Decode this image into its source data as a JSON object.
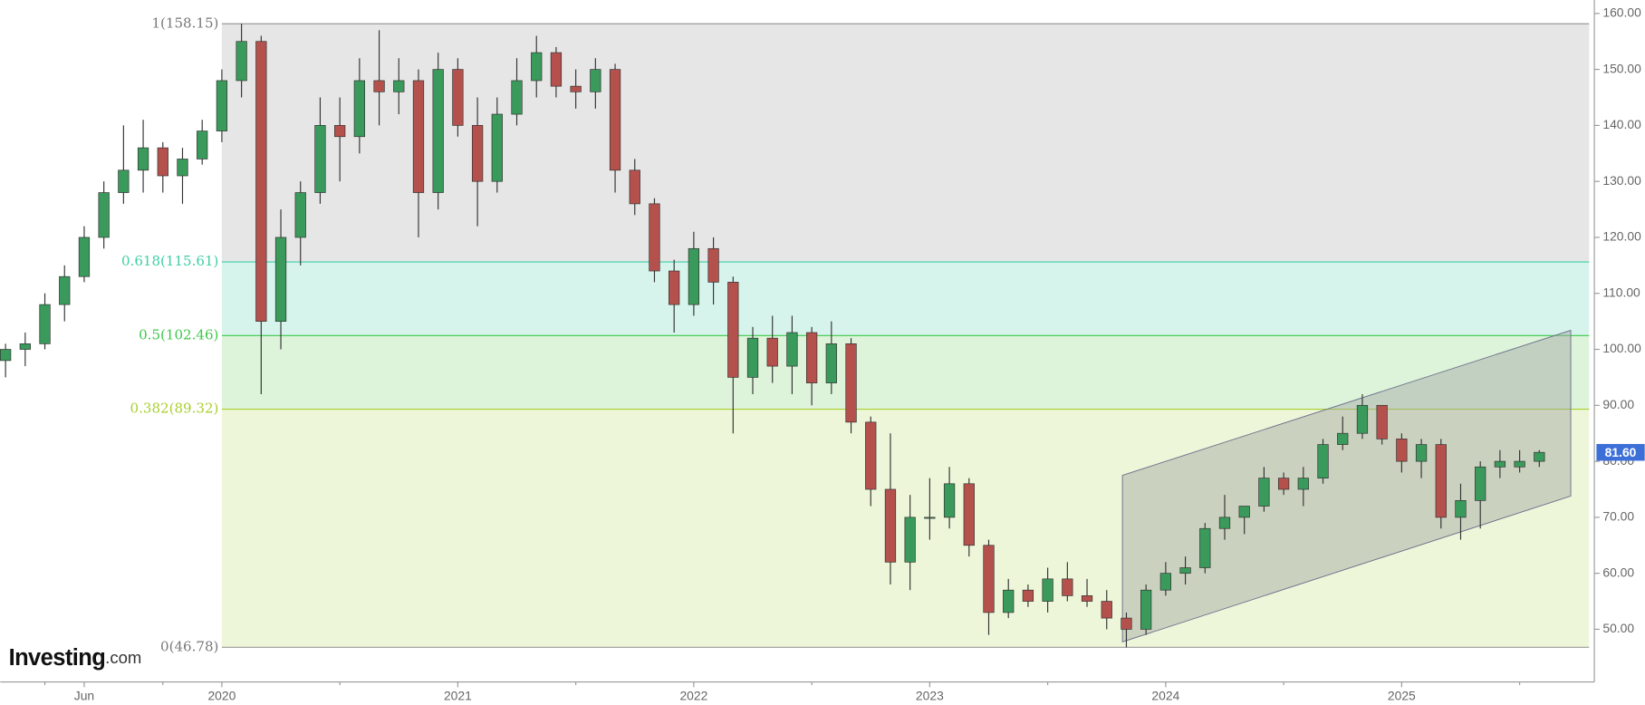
{
  "chart_data": {
    "type": "candlestick",
    "categories": [
      null,
      null,
      null,
      null,
      "Jun",
      null,
      null,
      null,
      null,
      null,
      null,
      "2020",
      null,
      null,
      null,
      null,
      null,
      null,
      null,
      null,
      null,
      null,
      null,
      "2021",
      null,
      null,
      null,
      null,
      null,
      null,
      null,
      null,
      null,
      null,
      null,
      "2022",
      null,
      null,
      null,
      null,
      null,
      null,
      null,
      null,
      null,
      null,
      null,
      "2023",
      null,
      null,
      null,
      null,
      null,
      null,
      null,
      null,
      null,
      null,
      null,
      "2024",
      null,
      null,
      null,
      null,
      null,
      null,
      null,
      null,
      null,
      null,
      null,
      "2025",
      null,
      null,
      null,
      null,
      null,
      null,
      null
    ],
    "ohlc": [
      [
        98,
        101,
        95,
        100
      ],
      [
        100,
        103,
        97,
        101
      ],
      [
        101,
        110,
        100,
        108
      ],
      [
        108,
        115,
        105,
        113
      ],
      [
        113,
        122,
        112,
        120
      ],
      [
        120,
        130,
        118,
        128
      ],
      [
        128,
        140,
        126,
        132
      ],
      [
        132,
        141,
        128,
        136
      ],
      [
        136,
        137,
        128,
        131
      ],
      [
        131,
        136,
        126,
        134
      ],
      [
        134,
        141,
        133,
        139
      ],
      [
        139,
        150,
        137,
        148
      ],
      [
        148,
        158.15,
        145,
        155
      ],
      [
        155,
        156,
        92,
        105
      ],
      [
        105,
        125,
        100,
        120
      ],
      [
        120,
        130,
        115,
        128
      ],
      [
        128,
        145,
        126,
        140
      ],
      [
        140,
        145,
        130,
        138
      ],
      [
        138,
        152,
        135,
        148
      ],
      [
        148,
        157,
        140,
        146
      ],
      [
        146,
        152,
        142,
        148
      ],
      [
        148,
        150,
        120,
        128
      ],
      [
        128,
        153,
        125,
        150
      ],
      [
        150,
        152,
        138,
        140
      ],
      [
        140,
        145,
        122,
        130
      ],
      [
        130,
        145,
        128,
        142
      ],
      [
        142,
        152,
        140,
        148
      ],
      [
        148,
        156,
        145,
        153
      ],
      [
        153,
        154,
        145,
        147
      ],
      [
        147,
        150,
        143,
        146
      ],
      [
        146,
        152,
        143,
        150
      ],
      [
        150,
        151,
        128,
        132
      ],
      [
        132,
        134,
        124,
        126
      ],
      [
        126,
        127,
        112,
        114
      ],
      [
        114,
        116,
        103,
        108
      ],
      [
        108,
        121,
        106,
        118
      ],
      [
        118,
        120,
        108,
        112
      ],
      [
        112,
        113,
        85,
        95
      ],
      [
        95,
        104,
        92,
        102
      ],
      [
        102,
        106,
        94,
        97
      ],
      [
        97,
        106,
        92,
        103
      ],
      [
        103,
        104,
        90,
        94
      ],
      [
        94,
        105,
        92,
        101
      ],
      [
        101,
        102,
        85,
        87
      ],
      [
        87,
        88,
        72,
        75
      ],
      [
        75,
        85,
        58,
        62
      ],
      [
        62,
        74,
        57,
        70
      ],
      [
        70,
        77,
        66,
        70
      ],
      [
        70,
        79,
        68,
        76
      ],
      [
        76,
        77,
        63,
        65
      ],
      [
        65,
        66,
        49,
        53
      ],
      [
        53,
        59,
        52,
        57
      ],
      [
        57,
        58,
        54,
        55
      ],
      [
        55,
        61,
        53,
        59
      ],
      [
        59,
        62,
        55,
        56
      ],
      [
        56,
        59,
        54,
        55
      ],
      [
        55,
        57,
        50,
        52
      ],
      [
        52,
        53,
        46.78,
        50
      ],
      [
        50,
        58,
        49,
        57
      ],
      [
        57,
        62,
        56,
        60
      ],
      [
        60,
        63,
        58,
        61
      ],
      [
        61,
        69,
        60,
        68
      ],
      [
        68,
        74,
        66,
        70
      ],
      [
        70,
        72,
        67,
        72
      ],
      [
        72,
        79,
        71,
        77
      ],
      [
        77,
        78,
        74,
        75
      ],
      [
        75,
        79,
        72,
        77
      ],
      [
        77,
        84,
        76,
        83
      ],
      [
        83,
        88,
        82,
        85
      ],
      [
        85,
        92,
        84,
        90
      ],
      [
        90,
        90,
        83,
        84
      ],
      [
        84,
        85,
        78,
        80
      ],
      [
        80,
        84,
        77,
        83
      ],
      [
        83,
        84,
        68,
        70
      ],
      [
        70,
        76,
        66,
        73
      ],
      [
        73,
        80,
        68,
        79
      ],
      [
        79,
        82,
        77,
        80
      ],
      [
        79,
        82,
        78,
        80
      ],
      [
        80,
        82,
        79,
        81.6
      ]
    ],
    "up_color": "#3a9a5b",
    "down_color": "#b4514c",
    "ylim": [
      40.6,
      162.4
    ],
    "yticks": [
      {
        "value": 50,
        "label": "50.00"
      },
      {
        "value": 60,
        "label": "60.00"
      },
      {
        "value": 70,
        "label": "70.00"
      },
      {
        "value": 80,
        "label": "80.00"
      },
      {
        "value": 90,
        "label": "90.00"
      },
      {
        "value": 100,
        "label": "100.00"
      },
      {
        "value": 110,
        "label": "110.00"
      },
      {
        "value": 120,
        "label": "120.00"
      },
      {
        "value": 130,
        "label": "130.00"
      },
      {
        "value": 140,
        "label": "140.00"
      },
      {
        "value": 150,
        "label": "150.00"
      },
      {
        "value": 160,
        "label": "160.00"
      }
    ],
    "fib_levels": [
      {
        "label": "1(158.15)",
        "value": 158.15,
        "color": "#9a9a9a",
        "fill": "#e6e6e6"
      },
      {
        "label": "0.618(115.61)",
        "value": 115.61,
        "color": "#3ccfa5",
        "fill": "#d6f4ec"
      },
      {
        "label": "0.5(102.46)",
        "value": 102.46,
        "color": "#3cc84a",
        "fill": "#ddf4da"
      },
      {
        "label": "0.382(89.32)",
        "value": 89.32,
        "color": "#a9cf2e",
        "fill": "#eef6d9"
      },
      {
        "label": "0(46.78)",
        "value": 46.78,
        "color": "#9a9a9a"
      }
    ],
    "channel": {
      "start": 56.8,
      "end": 79.6,
      "upper": [
        77.5,
        103.4
      ],
      "lower": [
        47.75,
        73.8
      ],
      "fill": "#9fa39f"
    },
    "last_price": {
      "value": 81.6,
      "label": "81.60",
      "color": "#3d6fd8"
    },
    "logo": {
      "brand": "Investing",
      "suffix": ".com"
    }
  }
}
